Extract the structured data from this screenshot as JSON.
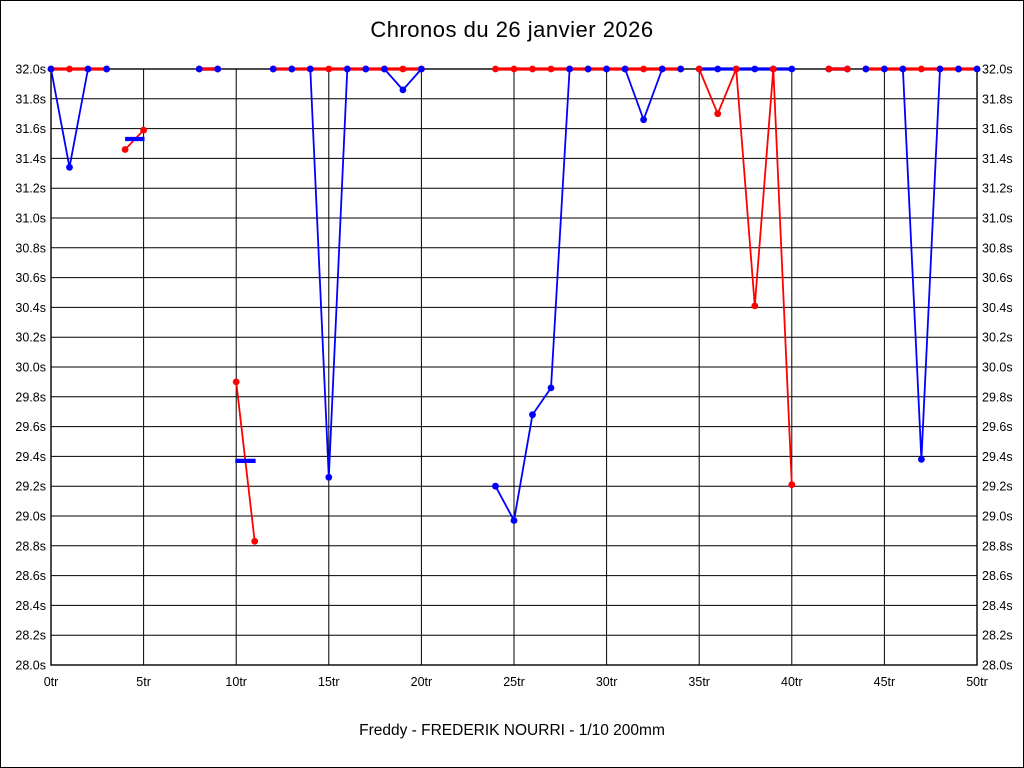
{
  "title": "Chronos du 26 janvier 2026",
  "footer": "Freddy - FREDERIK NOURRI - 1/10 200mm",
  "chart_data": {
    "type": "line",
    "title": "Chronos du 26 janvier 2026",
    "subtitle": "Freddy - FREDERIK NOURRI - 1/10 200mm",
    "x_unit": "tr",
    "y_unit": "s",
    "xlim": [
      0,
      50
    ],
    "ylim": [
      28.0,
      32.0
    ],
    "grid": true,
    "x_ticks": [
      0,
      5,
      10,
      15,
      20,
      25,
      30,
      35,
      40,
      45,
      50
    ],
    "x_tick_labels": [
      "0tr",
      "5tr",
      "10tr",
      "15tr",
      "20tr",
      "25tr",
      "30tr",
      "35tr",
      "40tr",
      "45tr",
      "50tr"
    ],
    "y_ticks": [
      32.0,
      31.8,
      31.6,
      31.4,
      31.2,
      31.0,
      30.8,
      30.6,
      30.4,
      30.2,
      30.0,
      29.8,
      29.6,
      29.4,
      29.2,
      29.0,
      28.8,
      28.6,
      28.4,
      28.2,
      28.0
    ],
    "y_tick_labels": [
      "32.0s",
      "31.8s",
      "31.6s",
      "31.4s",
      "31.2s",
      "31.0s",
      "30.8s",
      "30.6s",
      "30.4s",
      "30.2s",
      "30.0s",
      "29.8s",
      "29.6s",
      "29.4s",
      "29.2s",
      "29.0s",
      "28.8s",
      "28.6s",
      "28.4s",
      "28.2s",
      "28.0s"
    ],
    "series": [
      {
        "name": "red-series",
        "color": "#ff0000",
        "segments": [
          {
            "z": 2,
            "dot_z": 4,
            "points": [
              [
                0,
                32.0
              ],
              [
                1,
                32.0
              ],
              [
                2,
                32.0
              ],
              [
                3,
                32.0
              ]
            ]
          },
          {
            "z": 2,
            "dot_z": 4,
            "points": [
              [
                4,
                31.46
              ],
              [
                5,
                31.59
              ]
            ]
          },
          {
            "z": 2,
            "dot_z": 4,
            "points": [
              [
                8,
                32.0
              ],
              [
                9,
                32.0
              ]
            ]
          },
          {
            "z": 2,
            "dot_z": 4,
            "points": [
              [
                10,
                29.9
              ],
              [
                11,
                28.83
              ]
            ]
          },
          {
            "z": 2,
            "dot_z": 4,
            "points": [
              [
                12,
                32.0
              ],
              [
                13,
                32.0
              ],
              [
                14,
                32.0
              ],
              [
                15,
                32.0
              ],
              [
                16,
                32.0
              ],
              [
                17,
                32.0
              ],
              [
                18,
                32.0
              ],
              [
                19,
                32.0
              ],
              [
                20,
                32.0
              ]
            ]
          },
          {
            "z": 2,
            "dot_z": 4,
            "points": [
              [
                24,
                32.0
              ],
              [
                25,
                32.0
              ],
              [
                26,
                32.0
              ],
              [
                27,
                32.0
              ],
              [
                28,
                32.0
              ],
              [
                29,
                32.0
              ],
              [
                30,
                32.0
              ],
              [
                31,
                32.0
              ],
              [
                32,
                32.0
              ],
              [
                33,
                32.0
              ],
              [
                34,
                32.0
              ]
            ]
          },
          {
            "z": 2,
            "dot_z": 6,
            "points": [
              [
                35,
                32.0
              ],
              [
                36,
                31.7
              ],
              [
                37,
                32.0
              ],
              [
                38,
                30.41
              ],
              [
                39,
                32.0
              ],
              [
                40,
                29.21
              ]
            ]
          },
          {
            "z": 2,
            "dot_z": 6,
            "points": [
              [
                42,
                32.0
              ],
              [
                43,
                32.0
              ]
            ]
          },
          {
            "z": 2,
            "dot_z": 4,
            "points": [
              [
                44,
                32.0
              ],
              [
                45,
                32.0
              ],
              [
                46,
                32.0
              ],
              [
                47,
                32.0
              ],
              [
                48,
                32.0
              ],
              [
                49,
                32.0
              ],
              [
                50,
                32.0
              ]
            ]
          }
        ]
      },
      {
        "name": "blue-series",
        "color": "#0000ff",
        "segments": [
          {
            "z": 1,
            "dot_z": 5,
            "points": [
              [
                0,
                32.0
              ],
              [
                1,
                31.34
              ],
              [
                2,
                32.0
              ],
              [
                3,
                32.0
              ]
            ]
          },
          {
            "z": 1,
            "dot_z": 5,
            "points": [
              [
                8,
                32.0
              ],
              [
                9,
                32.0
              ]
            ]
          },
          {
            "z": 1,
            "dot_z": 5,
            "points": [
              [
                12,
                32.0
              ],
              [
                13,
                32.0
              ],
              [
                14,
                32.0
              ],
              [
                15,
                29.26
              ],
              [
                16,
                32.0
              ],
              [
                17,
                32.0
              ],
              [
                18,
                32.0
              ],
              [
                19,
                31.86
              ],
              [
                20,
                32.0
              ]
            ]
          },
          {
            "z": 1,
            "dot_z": 5,
            "points": [
              [
                24,
                29.2
              ],
              [
                25,
                28.97
              ],
              [
                26,
                29.68
              ],
              [
                27,
                29.86
              ],
              [
                28,
                32.0
              ],
              [
                29,
                32.0
              ],
              [
                30,
                32.0
              ],
              [
                31,
                32.0
              ],
              [
                32,
                31.66
              ],
              [
                33,
                32.0
              ],
              [
                34,
                32.0
              ]
            ]
          },
          {
            "z": 3,
            "dot_z": 5,
            "points": [
              [
                35,
                32.0
              ],
              [
                36,
                32.0
              ],
              [
                37,
                32.0
              ],
              [
                38,
                32.0
              ],
              [
                39,
                32.0
              ],
              [
                40,
                32.0
              ]
            ]
          },
          {
            "z": 1,
            "dot_z": 5,
            "points": [
              [
                42,
                32.0
              ],
              [
                43,
                32.0
              ]
            ]
          },
          {
            "z": 1,
            "dot_z": 5,
            "points": [
              [
                44,
                32.0
              ],
              [
                45,
                32.0
              ],
              [
                46,
                32.0
              ],
              [
                47,
                29.38
              ],
              [
                48,
                32.0
              ],
              [
                49,
                32.0
              ],
              [
                50,
                32.0
              ]
            ]
          }
        ]
      }
    ],
    "mean_markers": [
      {
        "x1": 4.0,
        "x2": 5.05,
        "y": 31.53,
        "color": "#0000ff"
      },
      {
        "x1": 9.95,
        "x2": 11.05,
        "y": 29.37,
        "color": "#0000ff"
      }
    ]
  }
}
